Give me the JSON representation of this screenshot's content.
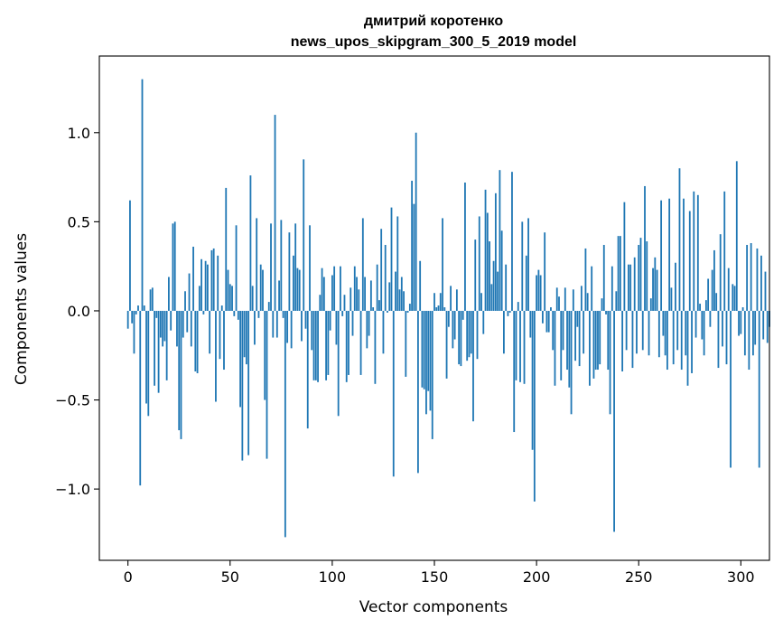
{
  "chart_data": {
    "type": "bar",
    "title_line1": "дмитрий коротенко",
    "title_line2": "news_upos_skipgram_300_5_2019 model",
    "xlabel": "Vector components",
    "ylabel": "Components values",
    "xlim": [
      -14,
      314
    ],
    "ylim": [
      -1.4,
      1.43
    ],
    "xticks": [
      0,
      50,
      100,
      150,
      200,
      250,
      300
    ],
    "yticks": [
      -1.0,
      -0.5,
      0.0,
      0.5,
      1.0
    ],
    "ytick_labels": [
      "−1.0",
      "−0.5",
      "0.0",
      "0.5",
      "1.0"
    ],
    "bar_color": "#1f77b4",
    "values": [
      -0.1,
      0.62,
      -0.07,
      -0.24,
      -0.02,
      0.03,
      -0.98,
      1.3,
      0.03,
      -0.52,
      -0.59,
      0.12,
      0.13,
      -0.42,
      -0.04,
      -0.46,
      -0.15,
      -0.2,
      -0.17,
      -0.39,
      0.19,
      -0.11,
      0.49,
      0.5,
      -0.2,
      -0.67,
      -0.72,
      -0.15,
      0.11,
      -0.12,
      0.21,
      -0.2,
      0.36,
      -0.34,
      -0.35,
      0.14,
      0.29,
      -0.02,
      0.28,
      0.26,
      -0.24,
      0.34,
      0.35,
      -0.51,
      0.31,
      -0.27,
      0.03,
      -0.33,
      0.69,
      0.23,
      0.15,
      0.14,
      -0.03,
      0.48,
      -0.05,
      -0.54,
      -0.84,
      -0.26,
      -0.3,
      -0.81,
      0.76,
      0.14,
      -0.19,
      0.52,
      -0.04,
      0.26,
      0.23,
      -0.5,
      -0.83,
      0.05,
      0.49,
      -0.15,
      1.1,
      -0.15,
      0.17,
      0.51,
      -0.04,
      -1.27,
      -0.18,
      0.44,
      -0.21,
      0.31,
      0.49,
      0.24,
      0.23,
      -0.17,
      0.85,
      -0.1,
      -0.66,
      0.48,
      -0.22,
      -0.39,
      -0.39,
      -0.4,
      0.09,
      0.24,
      0.19,
      -0.39,
      -0.36,
      -0.11,
      0.2,
      0.25,
      -0.19,
      -0.59,
      0.25,
      -0.03,
      0.09,
      -0.4,
      -0.36,
      0.13,
      -0.14,
      0.25,
      0.19,
      0.12,
      -0.36,
      0.52,
      0.19,
      -0.21,
      -0.14,
      0.17,
      0.02,
      -0.41,
      0.26,
      0.06,
      0.46,
      -0.24,
      0.37,
      -0.01,
      0.16,
      0.58,
      -0.93,
      0.22,
      0.53,
      0.12,
      0.19,
      0.11,
      -0.37,
      -0.01,
      0.04,
      0.73,
      0.6,
      1.0,
      -0.91,
      0.28,
      -0.43,
      -0.44,
      -0.58,
      -0.45,
      -0.56,
      -0.72,
      0.1,
      0.02,
      0.03,
      0.1,
      0.52,
      0.02,
      -0.38,
      -0.09,
      0.14,
      -0.21,
      -0.16,
      0.12,
      -0.3,
      -0.31,
      -0.05,
      0.72,
      -0.28,
      -0.26,
      -0.24,
      -0.62,
      0.4,
      -0.27,
      0.53,
      0.1,
      -0.13,
      0.68,
      0.55,
      0.39,
      0.15,
      0.28,
      0.66,
      0.22,
      0.79,
      0.45,
      -0.24,
      0.26,
      -0.03,
      -0.01,
      0.78,
      -0.68,
      -0.39,
      0.05,
      -0.4,
      0.5,
      -0.41,
      0.31,
      0.52,
      -0.15,
      -0.78,
      -1.07,
      0.2,
      0.23,
      0.2,
      -0.07,
      0.44,
      -0.12,
      -0.12,
      0.02,
      -0.22,
      -0.42,
      0.13,
      0.08,
      -0.39,
      -0.22,
      0.13,
      -0.33,
      -0.43,
      -0.58,
      0.12,
      -0.28,
      -0.09,
      -0.31,
      0.14,
      -0.24,
      0.35,
      0.1,
      -0.42,
      0.25,
      -0.38,
      -0.33,
      -0.33,
      -0.3,
      0.07,
      0.37,
      -0.02,
      -0.33,
      -0.58,
      0.25,
      -1.24,
      0.11,
      0.42,
      0.42,
      -0.34,
      0.61,
      -0.22,
      0.26,
      0.26,
      -0.32,
      0.3,
      -0.24,
      0.37,
      0.41,
      -0.22,
      0.7,
      0.39,
      -0.25,
      0.07,
      0.24,
      0.3,
      0.23,
      -0.26,
      0.62,
      -0.14,
      -0.25,
      -0.33,
      0.63,
      0.13,
      -0.3,
      0.27,
      -0.22,
      0.8,
      -0.33,
      0.63,
      -0.25,
      -0.42,
      0.56,
      -0.35,
      0.67,
      -0.15,
      0.65,
      0.04,
      -0.16,
      -0.25,
      0.06,
      0.18,
      -0.09,
      0.23,
      0.34,
      0.1,
      -0.32,
      0.43,
      -0.2,
      0.67,
      -0.3,
      0.24,
      -0.88,
      0.15,
      0.14,
      0.84,
      -0.14,
      -0.13,
      0.02,
      -0.25,
      0.37,
      -0.33,
      0.38,
      -0.25,
      -0.19,
      0.35,
      -0.88,
      0.31,
      -0.16,
      0.22,
      -0.18,
      -0.09
    ]
  }
}
